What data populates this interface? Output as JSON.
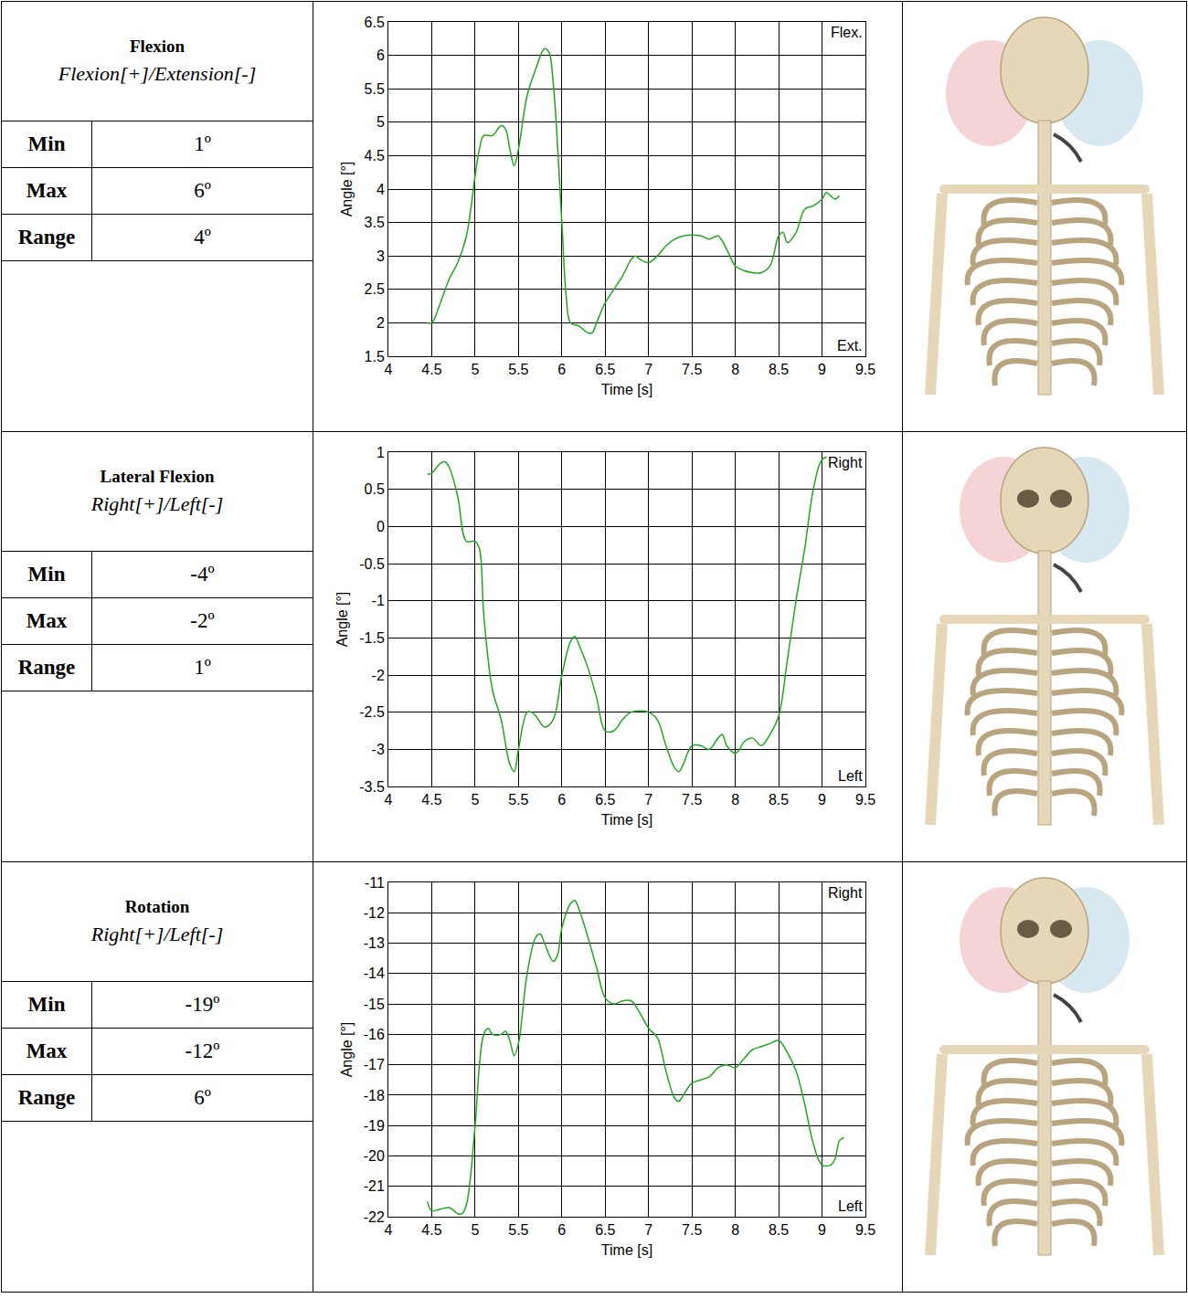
{
  "chart_data": [
    {
      "type": "line",
      "title": "Flexion",
      "subtitle": "Flexion[+]/Extension[-]",
      "x_label": "Time [s]",
      "y_label": "Angle [°]",
      "annotations": [
        "Flex.",
        "Ext."
      ],
      "color": "#1fa81f",
      "grid": true,
      "xlim": [
        4,
        9.5
      ],
      "xticks": [
        4,
        4.5,
        5,
        5.5,
        6,
        6.5,
        7,
        7.5,
        8,
        8.5,
        9,
        9.5
      ],
      "ylim": [
        1.5,
        6.5
      ],
      "yticks": [
        1.5,
        2,
        2.5,
        3,
        3.5,
        4,
        4.5,
        5,
        5.5,
        6,
        6.5
      ],
      "x": [
        4.45,
        4.5,
        4.6,
        4.7,
        4.8,
        4.9,
        5.0,
        5.05,
        5.1,
        5.2,
        5.3,
        5.35,
        5.4,
        5.45,
        5.5,
        5.6,
        5.7,
        5.8,
        5.85,
        5.9,
        6.0,
        6.05,
        6.1,
        6.2,
        6.3,
        6.35,
        6.4,
        6.5,
        6.6,
        6.7,
        6.8,
        6.85,
        6.9,
        7.0,
        7.1,
        7.2,
        7.3,
        7.4,
        7.6,
        7.7,
        7.8,
        7.9,
        8.0,
        8.1,
        8.2,
        8.3,
        8.4,
        8.5,
        8.55,
        8.6,
        8.7,
        8.8,
        8.9,
        9.0,
        9.05,
        9.1,
        9.15,
        9.2
      ],
      "values": [
        2.0,
        2.0,
        2.3,
        2.65,
        2.9,
        3.3,
        4.2,
        4.6,
        4.8,
        4.8,
        4.95,
        4.9,
        4.6,
        4.35,
        4.6,
        5.4,
        5.8,
        6.1,
        6.05,
        5.6,
        3.5,
        2.4,
        2.0,
        1.95,
        1.85,
        1.85,
        2.0,
        2.3,
        2.5,
        2.7,
        2.95,
        3.0,
        2.95,
        2.9,
        3.0,
        3.15,
        3.25,
        3.3,
        3.3,
        3.25,
        3.3,
        3.1,
        2.85,
        2.78,
        2.75,
        2.75,
        2.85,
        3.3,
        3.35,
        3.2,
        3.35,
        3.7,
        3.75,
        3.85,
        3.95,
        3.9,
        3.85,
        3.9
      ]
    },
    {
      "type": "line",
      "title": "Lateral Flexion",
      "subtitle": "Right[+]/Left[-]",
      "x_label": "Time [s]",
      "y_label": "Angle [°]",
      "annotations": [
        "Right",
        "Left"
      ],
      "color": "#1fa81f",
      "grid": true,
      "xlim": [
        4,
        9.5
      ],
      "xticks": [
        4,
        4.5,
        5,
        5.5,
        6,
        6.5,
        7,
        7.5,
        8,
        8.5,
        9,
        9.5
      ],
      "ylim": [
        -3.5,
        1
      ],
      "yticks": [
        -3.5,
        -3,
        -2.5,
        -2,
        -1.5,
        -1,
        -0.5,
        0,
        0.5,
        1
      ],
      "x": [
        4.45,
        4.5,
        4.6,
        4.65,
        4.7,
        4.8,
        4.9,
        5.0,
        5.05,
        5.1,
        5.2,
        5.3,
        5.4,
        5.45,
        5.5,
        5.6,
        5.65,
        5.7,
        5.8,
        5.9,
        6.0,
        6.1,
        6.15,
        6.2,
        6.3,
        6.4,
        6.5,
        6.6,
        6.7,
        6.8,
        7.0,
        7.1,
        7.2,
        7.3,
        7.35,
        7.4,
        7.5,
        7.6,
        7.7,
        7.8,
        7.85,
        7.9,
        8.0,
        8.05,
        8.1,
        8.2,
        8.3,
        8.4,
        8.5,
        8.6,
        8.7,
        8.8,
        8.9,
        9.0,
        9.1,
        9.2
      ],
      "values": [
        0.7,
        0.72,
        0.85,
        0.87,
        0.8,
        0.4,
        -0.2,
        -0.2,
        -0.3,
        -1.2,
        -2.2,
        -2.6,
        -3.2,
        -3.3,
        -3.0,
        -2.5,
        -2.5,
        -2.55,
        -2.7,
        -2.6,
        -2.0,
        -1.55,
        -1.48,
        -1.6,
        -1.9,
        -2.3,
        -2.75,
        -2.75,
        -2.6,
        -2.5,
        -2.5,
        -2.6,
        -2.95,
        -3.25,
        -3.3,
        -3.2,
        -2.95,
        -2.95,
        -3.0,
        -2.85,
        -2.8,
        -2.95,
        -3.05,
        -3.0,
        -2.9,
        -2.85,
        -2.95,
        -2.8,
        -2.55,
        -1.8,
        -1.0,
        -0.3,
        0.5,
        0.9,
        0.95,
        0.95
      ]
    },
    {
      "type": "line",
      "title": "Rotation",
      "subtitle": "Right[+]/Left[-]",
      "x_label": "Time [s]",
      "y_label": "Angle [°]",
      "annotations": [
        "Right",
        "Left"
      ],
      "color": "#1fa81f",
      "grid": true,
      "xlim": [
        4,
        9.5
      ],
      "xticks": [
        4,
        4.5,
        5,
        5.5,
        6,
        6.5,
        7,
        7.5,
        8,
        8.5,
        9,
        9.5
      ],
      "ylim": [
        -22,
        -11
      ],
      "yticks": [
        -22,
        -21,
        -20,
        -19,
        -18,
        -17,
        -16,
        -15,
        -14,
        -13,
        -12,
        -11
      ],
      "x": [
        4.45,
        4.5,
        4.6,
        4.7,
        4.8,
        4.85,
        4.9,
        5.0,
        5.05,
        5.1,
        5.15,
        5.2,
        5.3,
        5.35,
        5.4,
        5.45,
        5.5,
        5.6,
        5.7,
        5.75,
        5.8,
        5.9,
        5.95,
        6.0,
        6.1,
        6.15,
        6.2,
        6.3,
        6.4,
        6.5,
        6.6,
        6.7,
        6.8,
        6.9,
        7.0,
        7.1,
        7.2,
        7.3,
        7.35,
        7.4,
        7.5,
        7.6,
        7.7,
        7.8,
        7.9,
        8.0,
        8.1,
        8.2,
        8.3,
        8.4,
        8.5,
        8.6,
        8.7,
        8.8,
        8.9,
        9.0,
        9.1,
        9.15,
        9.2,
        9.25
      ],
      "values": [
        -21.5,
        -21.8,
        -21.75,
        -21.7,
        -21.9,
        -21.9,
        -21.6,
        -19.0,
        -17.0,
        -16.0,
        -15.8,
        -16.0,
        -16.0,
        -15.9,
        -16.2,
        -16.7,
        -16.3,
        -14.0,
        -12.8,
        -12.7,
        -13.0,
        -13.6,
        -13.4,
        -12.5,
        -11.7,
        -11.6,
        -11.9,
        -12.8,
        -13.8,
        -14.8,
        -15.0,
        -14.9,
        -14.9,
        -15.3,
        -15.8,
        -16.1,
        -17.2,
        -18.1,
        -18.2,
        -18.0,
        -17.6,
        -17.5,
        -17.4,
        -17.1,
        -17.0,
        -17.1,
        -16.8,
        -16.5,
        -16.4,
        -16.3,
        -16.2,
        -16.6,
        -17.2,
        -18.3,
        -19.6,
        -20.3,
        -20.3,
        -20.1,
        -19.5,
        -19.4
      ]
    }
  ],
  "summaries": [
    {
      "rows": [
        [
          "Min",
          "1º"
        ],
        [
          "Max",
          "6º"
        ],
        [
          "Range",
          "4º"
        ]
      ]
    },
    {
      "rows": [
        [
          "Min",
          "-4º"
        ],
        [
          "Max",
          "-2º"
        ],
        [
          "Range",
          "1º"
        ]
      ]
    },
    {
      "rows": [
        [
          "Min",
          "-19º"
        ],
        [
          "Max",
          "-12º"
        ],
        [
          "Range",
          "6º"
        ]
      ]
    }
  ]
}
